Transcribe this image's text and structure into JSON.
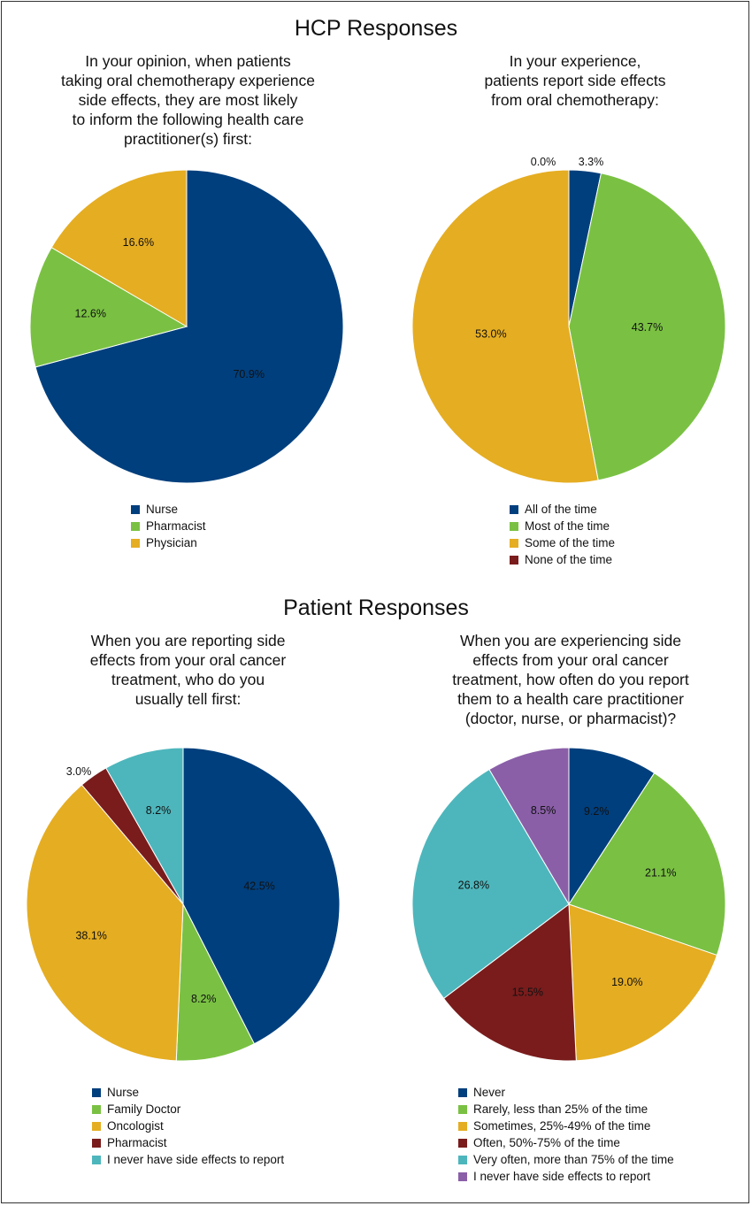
{
  "hcp_title": "HCP Responses",
  "patient_title": "Patient Responses",
  "chart_data": [
    {
      "type": "pie",
      "title_lines": [
        "In your opinion, when patients",
        "taking oral chemotherapy experience",
        "side effects, they are most likely",
        "to inform the following health care",
        "practitioner(s) first:"
      ],
      "categories": [
        "Nurse",
        "Pharmacist",
        "Physician"
      ],
      "values": [
        70.9,
        12.6,
        16.6
      ],
      "labels": [
        "70.9%",
        "12.6%",
        "16.6%"
      ],
      "colors": [
        "#003f7d",
        "#7ac143",
        "#e5ad22"
      ],
      "legend_position": "bottom"
    },
    {
      "type": "pie",
      "title_lines": [
        "In your experience,",
        "patients report side effects",
        "from oral chemotherapy:"
      ],
      "categories": [
        "All of the time",
        "Most of the time",
        "Some of the time",
        "None of the time"
      ],
      "values": [
        3.3,
        43.7,
        53.0,
        0.0
      ],
      "labels": [
        "3.3%",
        "43.7%",
        "53.0%",
        "0.0%"
      ],
      "colors": [
        "#003f7d",
        "#7ac143",
        "#e5ad22",
        "#7a1c1c"
      ],
      "legend_position": "bottom"
    },
    {
      "type": "pie",
      "title_lines": [
        "When you are reporting side",
        "effects from your oral cancer",
        "treatment, who do you",
        "usually tell first:"
      ],
      "categories": [
        "Nurse",
        "Family Doctor",
        "Oncologist",
        "Pharmacist",
        "I never have side effects to report"
      ],
      "values": [
        42.5,
        8.2,
        38.1,
        3.0,
        8.2
      ],
      "labels": [
        "42.5%",
        "8.2%",
        "38.1%",
        "3.0%",
        "8.2%"
      ],
      "colors": [
        "#003f7d",
        "#7ac143",
        "#e5ad22",
        "#7a1c1c",
        "#4db6bc"
      ],
      "legend_position": "bottom"
    },
    {
      "type": "pie",
      "title_lines": [
        "When you are experiencing side",
        "effects from your oral cancer",
        "treatment, how often do you report",
        "them to a health care practitioner",
        "(doctor, nurse, or pharmacist)?"
      ],
      "categories": [
        "Never",
        "Rarely, less than 25% of the time",
        "Sometimes, 25%-49% of the time",
        "Often, 50%-75% of the time",
        "Very often, more than 75% of the time",
        "I never have side effects to report"
      ],
      "values": [
        9.2,
        21.1,
        19.0,
        15.5,
        26.8,
        8.5
      ],
      "labels": [
        "9.2%",
        "21.1%",
        "19.0%",
        "15.5%",
        "26.8%",
        "8.5%"
      ],
      "colors": [
        "#003f7d",
        "#7ac143",
        "#e5ad22",
        "#7a1c1c",
        "#4db6bc",
        "#8a5fa8"
      ],
      "legend_position": "bottom"
    }
  ]
}
